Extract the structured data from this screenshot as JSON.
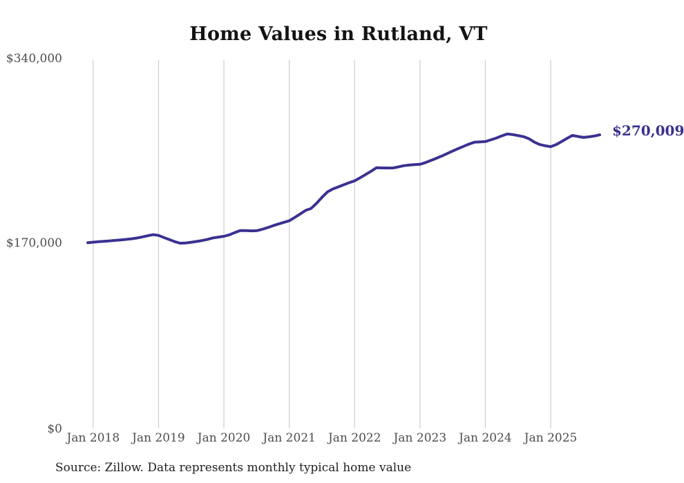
{
  "title": "Home Values in Rutland, VT",
  "source_note": "Source: Zillow. Data represents monthly typical home value",
  "chart_data": {
    "type": "line",
    "title": "Home Values in Rutland, VT",
    "series_name": "Monthly typical home value",
    "frequency": "monthly",
    "x_start": "Dec 2017",
    "x_end": "Oct 2025",
    "ylim": [
      0,
      340000
    ],
    "grid": "vertical-only",
    "legend": "none",
    "line_color": "#3a3191",
    "grid_color": "#cccccc",
    "end_label": "$270,009",
    "end_value": 270009,
    "y_ticks": [
      "$0",
      "$170,000",
      "$340,000"
    ],
    "x_tick_labels": [
      "Jan 2018",
      "Jan 2019",
      "Jan 2020",
      "Jan 2021",
      "Jan 2022",
      "Jan 2023",
      "Jan 2024",
      "Jan 2025"
    ],
    "values": [
      170800,
      171300,
      171700,
      172100,
      172500,
      172900,
      173300,
      173800,
      174400,
      175100,
      176100,
      177200,
      178200,
      177500,
      175500,
      173700,
      171700,
      170300,
      170600,
      171200,
      172000,
      172800,
      173900,
      175200,
      176000,
      176700,
      178100,
      180100,
      182000,
      181900,
      181700,
      181800,
      183100,
      184600,
      186400,
      188000,
      189500,
      191000,
      194000,
      197200,
      200500,
      202300,
      207000,
      212500,
      217500,
      220200,
      222100,
      224100,
      226000,
      227700,
      230500,
      233400,
      236500,
      239700,
      239600,
      239500,
      239500,
      240500,
      241600,
      242200,
      242600,
      242900,
      244500,
      246400,
      248400,
      250500,
      252800,
      255100,
      257300,
      259400,
      261500,
      263200,
      263500,
      263800,
      265400,
      267000,
      269000,
      270800,
      270300,
      269300,
      268300,
      266500,
      263300,
      261100,
      260000,
      259100,
      261000,
      263800,
      266800,
      269500,
      268500,
      267600,
      268200,
      268900,
      270009
    ]
  }
}
